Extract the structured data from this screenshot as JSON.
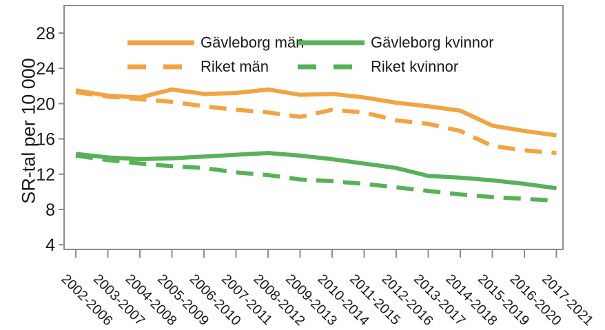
{
  "chart_data": {
    "type": "line",
    "title": "",
    "xlabel": "",
    "ylabel": "SR-tal per 10 000",
    "yticks": [
      4,
      8,
      12,
      16,
      20,
      24,
      28
    ],
    "ylim": [
      3.4,
      31.1
    ],
    "grid": false,
    "legend_position": "top-inside",
    "axis_color": "#8C8C8C",
    "text_color": "#1A1A1A",
    "categories": [
      "2002-2006",
      "2003-2007",
      "2004-2008",
      "2005-2009",
      "2006-2010",
      "2007-2011",
      "2008-2012",
      "2009-2013",
      "2010-2014",
      "2011-2015",
      "2012-2016",
      "2013-2017",
      "2014-2018",
      "2015-2019",
      "2016-2020",
      "2017-2021"
    ],
    "series": [
      {
        "name": "Gävleborg män",
        "style": "solid",
        "color": "#F2A342",
        "values": [
          21.5,
          20.9,
          20.7,
          21.6,
          21.1,
          21.2,
          21.6,
          21.0,
          21.1,
          20.7,
          20.1,
          19.7,
          19.2,
          17.5,
          16.9,
          16.4
        ]
      },
      {
        "name": "Riket män",
        "style": "dashed",
        "color": "#F2A342",
        "values": [
          21.3,
          20.8,
          20.5,
          20.2,
          19.7,
          19.3,
          19.0,
          18.5,
          19.3,
          19.0,
          18.1,
          17.7,
          16.9,
          15.2,
          14.7,
          14.4
        ]
      },
      {
        "name": "Gävleborg kvinnor",
        "style": "solid",
        "color": "#58B158",
        "values": [
          14.3,
          13.9,
          13.7,
          13.8,
          14.0,
          14.2,
          14.4,
          14.1,
          13.7,
          13.2,
          12.7,
          11.8,
          11.6,
          11.3,
          10.9,
          10.4
        ]
      },
      {
        "name": "Riket kvinnor",
        "style": "dashed",
        "color": "#58B158",
        "values": [
          14.1,
          13.6,
          13.2,
          12.9,
          12.7,
          12.2,
          11.9,
          11.4,
          11.2,
          10.9,
          10.5,
          10.1,
          9.7,
          9.4,
          9.2,
          9.0
        ]
      }
    ]
  }
}
